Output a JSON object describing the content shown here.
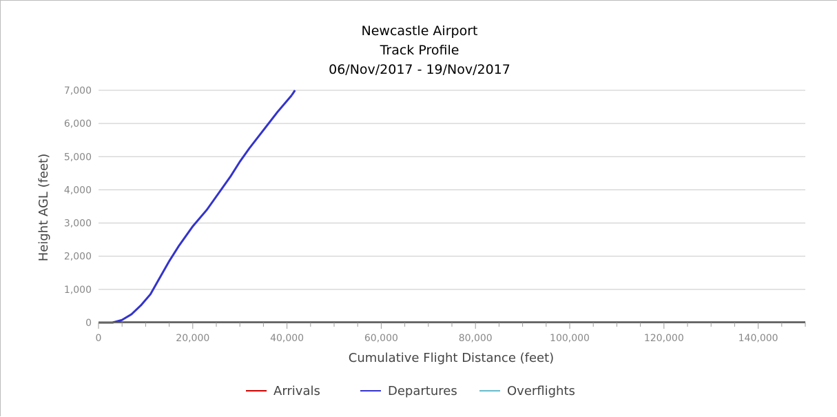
{
  "chart_data": {
    "type": "line",
    "title": [
      "Newcastle Airport",
      "Track Profile",
      "06/Nov/2017 - 19/Nov/2017"
    ],
    "xlabel": "Cumulative Flight Distance (feet)",
    "ylabel": "Height AGL (feet)",
    "xlim": [
      0,
      150000
    ],
    "ylim": [
      0,
      7000
    ],
    "x_ticks": [
      0,
      20000,
      40000,
      60000,
      80000,
      100000,
      120000,
      140000
    ],
    "x_tick_labels": [
      "0",
      "20,000",
      "40,000",
      "60,000",
      "80,000",
      "100,000",
      "120,000",
      "140,000"
    ],
    "y_ticks": [
      0,
      1000,
      2000,
      3000,
      4000,
      5000,
      6000,
      7000
    ],
    "y_tick_labels": [
      "0",
      "1,000",
      "2,000",
      "3,000",
      "4,000",
      "5,000",
      "6,000",
      "7,000"
    ],
    "grid": "horizontal",
    "legend_position": "bottom",
    "series": [
      {
        "name": "Arrivals",
        "color": "#cc0000",
        "x": [],
        "y": []
      },
      {
        "name": "Departures",
        "color": "#3333cc",
        "x": [
          0,
          3000,
          5000,
          7000,
          9000,
          11000,
          13000,
          15000,
          17000,
          20000,
          23000,
          25000,
          28000,
          30000,
          32000,
          35000,
          38000,
          41000,
          150000
        ],
        "y": [
          0,
          0,
          80,
          250,
          520,
          850,
          1350,
          1850,
          2300,
          2900,
          3400,
          3800,
          4400,
          4850,
          5250,
          5800,
          6350,
          6850,
          0
        ],
        "note_visible_path": "ends at top of plot"
      },
      {
        "name": "Overflights",
        "color": "#66bbcc",
        "x": [],
        "y": []
      }
    ]
  }
}
